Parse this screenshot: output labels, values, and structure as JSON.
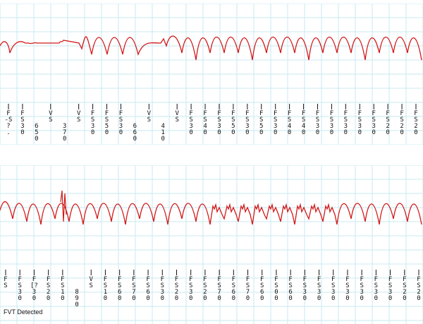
{
  "colors": {
    "grid": "#c9eaf2",
    "trace": "#d11919",
    "marker_text": "#111111"
  },
  "strip1": {
    "markers": [
      {
        "lines": [
          "F",
          "-S",
          "?",
          "."
        ]
      },
      {
        "lines": [
          "F",
          "S",
          "3",
          "0"
        ]
      },
      {
        "lines": [
          "",
          "",
          "6",
          "5",
          "0"
        ]
      },
      {
        "lines": [
          "V",
          "S"
        ]
      },
      {
        "lines": [
          "",
          "",
          "3",
          "7",
          "0"
        ]
      },
      {
        "lines": [
          "V",
          "S"
        ]
      },
      {
        "lines": [
          "F",
          "S",
          "3",
          "0"
        ]
      },
      {
        "lines": [
          "F",
          "S",
          "5",
          "0"
        ]
      },
      {
        "lines": [
          "F",
          "S",
          "3",
          "0"
        ]
      },
      {
        "lines": [
          "",
          "",
          "6",
          "6",
          "0"
        ]
      },
      {
        "lines": [
          "V",
          "S"
        ]
      },
      {
        "lines": [
          "",
          "",
          "4",
          "1",
          "0"
        ]
      },
      {
        "lines": [
          "V",
          "S"
        ]
      },
      {
        "lines": [
          "F",
          "S",
          "3",
          "0"
        ]
      },
      {
        "lines": [
          "F",
          "S",
          "4",
          "0"
        ]
      },
      {
        "lines": [
          "F",
          "S",
          "3",
          "0"
        ]
      },
      {
        "lines": [
          "F",
          "S",
          "5",
          "0"
        ]
      },
      {
        "lines": [
          "F",
          "S",
          "3",
          "0"
        ]
      },
      {
        "lines": [
          "F",
          "S",
          "5",
          "0"
        ]
      },
      {
        "lines": [
          "F",
          "S",
          "3",
          "0"
        ]
      },
      {
        "lines": [
          "F",
          "S",
          "4",
          "0"
        ]
      },
      {
        "lines": [
          "F",
          "S",
          "4",
          "0"
        ]
      },
      {
        "lines": [
          "F",
          "S",
          "3",
          "0"
        ]
      },
      {
        "lines": [
          "F",
          "S",
          "3",
          "0"
        ]
      },
      {
        "lines": [
          "F",
          "S",
          "3",
          "0"
        ]
      },
      {
        "lines": [
          "F",
          "S",
          "3",
          "0"
        ]
      },
      {
        "lines": [
          "F",
          "S",
          "3",
          "0"
        ]
      },
      {
        "lines": [
          "F",
          "S",
          "2",
          "0"
        ]
      },
      {
        "lines": [
          "F",
          "S",
          "2",
          "0"
        ]
      },
      {
        "lines": [
          "F",
          "S",
          "2",
          "0"
        ]
      }
    ]
  },
  "strip2": {
    "markers": [
      {
        "lines": [
          "F",
          "S"
        ]
      },
      {
        "lines": [
          "F",
          "S",
          "3",
          "0"
        ]
      },
      {
        "lines": [
          "F",
          "[?",
          "3",
          "0"
        ]
      },
      {
        "lines": [
          "F",
          "S",
          "2",
          "0"
        ]
      },
      {
        "lines": [
          "F",
          "S",
          "1",
          "0"
        ]
      },
      {
        "lines": [
          "",
          "",
          "8",
          "9",
          "0"
        ]
      },
      {
        "lines": [
          "V",
          "S"
        ]
      },
      {
        "lines": [
          "F",
          "S",
          "1",
          "0"
        ]
      },
      {
        "lines": [
          "F",
          "S",
          "6",
          "0"
        ]
      },
      {
        "lines": [
          "F",
          "S",
          "7",
          "0"
        ]
      },
      {
        "lines": [
          "F",
          "S",
          "6",
          "0"
        ]
      },
      {
        "lines": [
          "F",
          "S",
          "3",
          "0"
        ]
      },
      {
        "lines": [
          "F",
          "S",
          "2",
          "0"
        ]
      },
      {
        "lines": [
          "F",
          "S",
          "3",
          "0"
        ]
      },
      {
        "lines": [
          "F",
          "S",
          "2",
          "0"
        ]
      },
      {
        "lines": [
          "F",
          "S",
          "7",
          "0"
        ]
      },
      {
        "lines": [
          "F",
          "S",
          "6",
          "0"
        ]
      },
      {
        "lines": [
          "F",
          "S",
          "7",
          "0"
        ]
      },
      {
        "lines": [
          "F",
          "S",
          "6",
          "0"
        ]
      },
      {
        "lines": [
          "F",
          "S",
          "0",
          "0"
        ]
      },
      {
        "lines": [
          "F",
          "S",
          "6",
          "0"
        ]
      },
      {
        "lines": [
          "F",
          "S",
          "3",
          "0"
        ]
      },
      {
        "lines": [
          "F",
          "S",
          "3",
          "0"
        ]
      },
      {
        "lines": [
          "F",
          "S",
          "3",
          "0"
        ]
      },
      {
        "lines": [
          "F",
          "S",
          "3",
          "0"
        ]
      },
      {
        "lines": [
          "F",
          "S",
          "3",
          "0"
        ]
      },
      {
        "lines": [
          "F",
          "S",
          "3",
          "0"
        ]
      },
      {
        "lines": [
          "F",
          "S",
          "3",
          "0"
        ]
      },
      {
        "lines": [
          "F",
          "S",
          "2",
          "0"
        ]
      },
      {
        "lines": [
          "F",
          "S",
          "2",
          "0"
        ]
      }
    ],
    "annotation": "FVT Detected"
  }
}
